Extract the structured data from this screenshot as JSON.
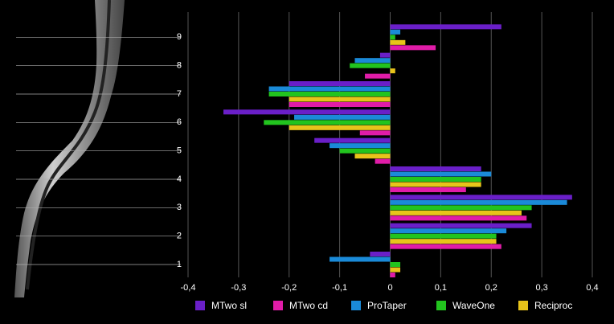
{
  "chart_data": {
    "type": "bar",
    "orientation": "horizontal",
    "categories": [
      "1",
      "2",
      "3",
      "4",
      "5",
      "6",
      "7",
      "8",
      "9"
    ],
    "series": [
      {
        "name": "MTwo sl",
        "color": "#6a1fc8",
        "values": [
          -0.04,
          0.28,
          0.36,
          0.18,
          -0.15,
          -0.33,
          -0.2,
          -0.02,
          0.22
        ]
      },
      {
        "name": "MTwo cd",
        "color": "#e01ca8",
        "values": [
          0.01,
          0.22,
          0.27,
          0.15,
          -0.03,
          -0.06,
          -0.2,
          -0.05,
          0.09
        ]
      },
      {
        "name": "ProTaper",
        "color": "#1a8ad8",
        "values": [
          -0.12,
          0.23,
          0.35,
          0.2,
          -0.12,
          -0.19,
          -0.24,
          -0.07,
          0.02
        ]
      },
      {
        "name": "WaveOne",
        "color": "#22c41e",
        "values": [
          0.02,
          0.21,
          0.28,
          0.18,
          -0.1,
          -0.25,
          -0.24,
          -0.08,
          0.01
        ]
      },
      {
        "name": "Reciproc",
        "color": "#e8c41a",
        "values": [
          0.02,
          0.21,
          0.26,
          0.18,
          -0.07,
          -0.2,
          -0.2,
          0.01,
          0.03
        ]
      }
    ],
    "xlim": [
      -0.4,
      0.4
    ],
    "xticks": [
      {
        "value": -0.4,
        "label": "-0,4"
      },
      {
        "value": -0.3,
        "label": "-0,3"
      },
      {
        "value": -0.2,
        "label": "-0,2"
      },
      {
        "value": -0.1,
        "label": "-0,1"
      },
      0,
      {
        "value": 0.1,
        "label": "0,1"
      },
      {
        "value": 0.2,
        "label": "0,2"
      },
      {
        "value": 0.3,
        "label": "0,3"
      },
      {
        "value": 0.4,
        "label": "0,4"
      }
    ],
    "grid": true
  }
}
